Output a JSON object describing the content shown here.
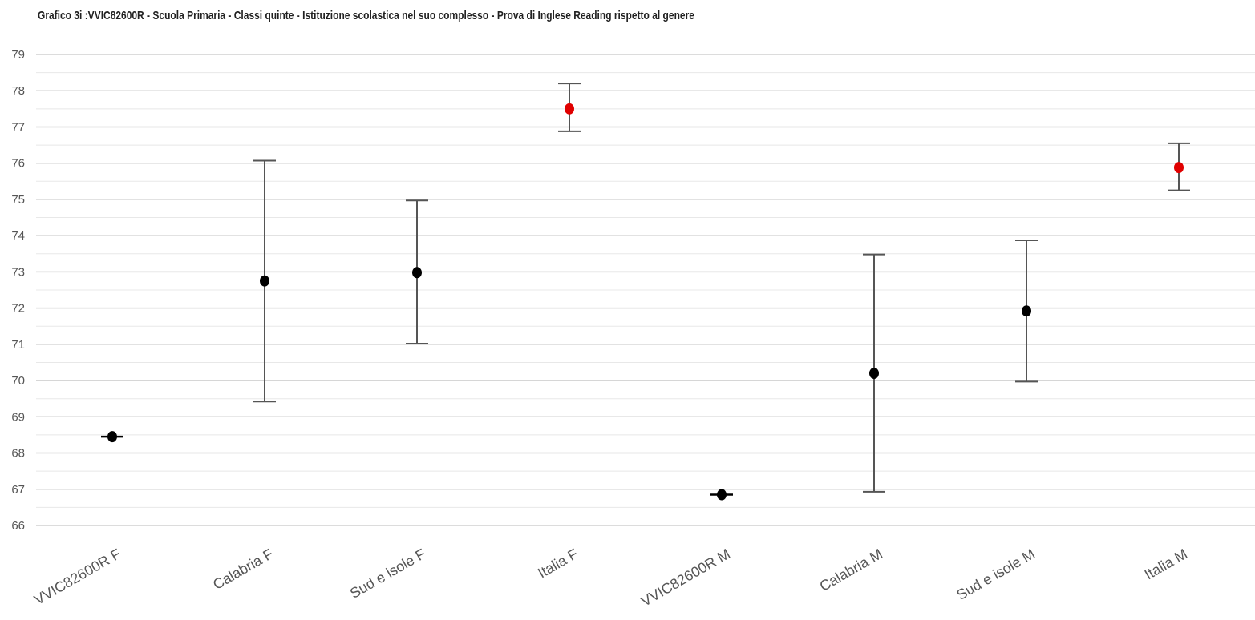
{
  "chart_data": {
    "type": "scatter",
    "title": "Grafico 3i :VVIC82600R - Scuola Primaria - Classi quinte - Istituzione scolastica nel suo complesso - Prova di Inglese Reading rispetto al genere",
    "xlabel": "",
    "ylabel": "",
    "ylim": [
      66,
      79
    ],
    "yticks": [
      79,
      78,
      77,
      76,
      75,
      74,
      73,
      72,
      71,
      70,
      69,
      68,
      67,
      66
    ],
    "grid": true,
    "categories": [
      "VVIC82600R F",
      "Calabria F",
      "Sud e isole F",
      "Italia F",
      "VVIC82600R M",
      "Calabria M",
      "Sud e isole M",
      "Italia M"
    ],
    "values": [
      68.45,
      72.75,
      72.98,
      77.5,
      66.85,
      70.2,
      71.92,
      75.88
    ],
    "error_low": [
      68.45,
      69.42,
      71.02,
      76.88,
      66.85,
      66.93,
      69.97,
      75.25
    ],
    "error_high": [
      68.45,
      76.07,
      74.97,
      78.2,
      66.85,
      73.48,
      73.87,
      76.55
    ],
    "point_colors": [
      "#000000",
      "#000000",
      "#000000",
      "#e00000",
      "#000000",
      "#000000",
      "#000000",
      "#e00000"
    ]
  },
  "colors": {
    "grid": "#d0d0d0",
    "minor_grid": "#e8e8e8",
    "error_bar": "#555555"
  }
}
